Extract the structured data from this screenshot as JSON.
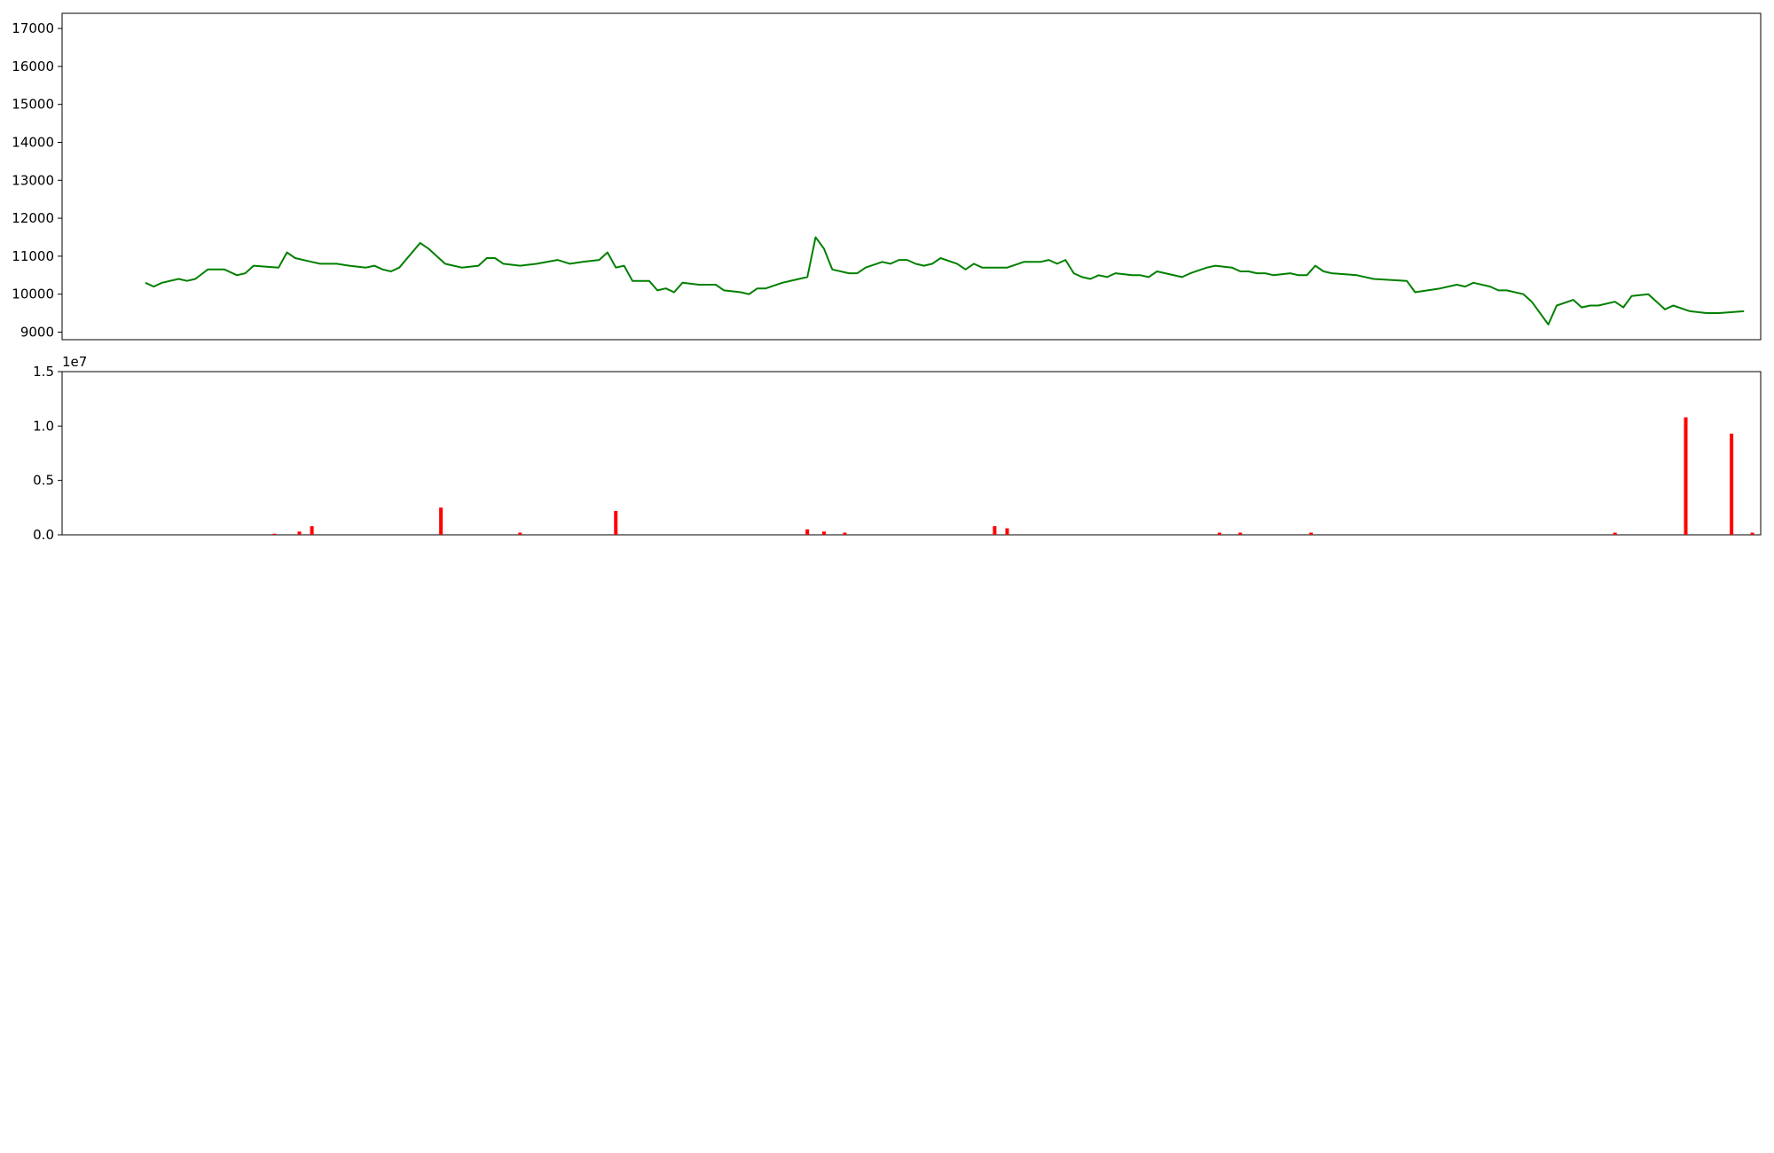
{
  "chart_data": [
    {
      "type": "line",
      "id": "price",
      "color": "#008000",
      "xlim": [
        "2022-12-16",
        "2024-01-28"
      ],
      "ylim": [
        8800,
        17400
      ],
      "yticks": [
        9000,
        10000,
        11000,
        12000,
        13000,
        14000,
        15000,
        16000,
        17000
      ],
      "points": [
        [
          "2023-01-05",
          10300
        ],
        [
          "2023-01-07",
          10200
        ],
        [
          "2023-01-09",
          10300
        ],
        [
          "2023-01-13",
          10400
        ],
        [
          "2023-01-15",
          10350
        ],
        [
          "2023-01-17",
          10400
        ],
        [
          "2023-01-20",
          10650
        ],
        [
          "2023-01-24",
          10650
        ],
        [
          "2023-01-27",
          10500
        ],
        [
          "2023-01-29",
          10550
        ],
        [
          "2023-01-31",
          10750
        ],
        [
          "2023-02-06",
          10700
        ],
        [
          "2023-02-08",
          11100
        ],
        [
          "2023-02-10",
          10950
        ],
        [
          "2023-02-14",
          10850
        ],
        [
          "2023-02-16",
          10800
        ],
        [
          "2023-02-20",
          10800
        ],
        [
          "2023-02-23",
          10750
        ],
        [
          "2023-02-27",
          10700
        ],
        [
          "2023-03-01",
          10750
        ],
        [
          "2023-03-03",
          10650
        ],
        [
          "2023-03-05",
          10600
        ],
        [
          "2023-03-07",
          10700
        ],
        [
          "2023-03-12",
          11350
        ],
        [
          "2023-03-14",
          11200
        ],
        [
          "2023-03-18",
          10800
        ],
        [
          "2023-03-22",
          10700
        ],
        [
          "2023-03-26",
          10750
        ],
        [
          "2023-03-28",
          10950
        ],
        [
          "2023-03-30",
          10950
        ],
        [
          "2023-04-01",
          10800
        ],
        [
          "2023-04-05",
          10750
        ],
        [
          "2023-04-09",
          10800
        ],
        [
          "2023-04-14",
          10900
        ],
        [
          "2023-04-17",
          10800
        ],
        [
          "2023-04-20",
          10850
        ],
        [
          "2023-04-24",
          10900
        ],
        [
          "2023-04-26",
          11100
        ],
        [
          "2023-04-28",
          10700
        ],
        [
          "2023-04-30",
          10750
        ],
        [
          "2023-05-02",
          10350
        ],
        [
          "2023-05-06",
          10350
        ],
        [
          "2023-05-08",
          10100
        ],
        [
          "2023-05-10",
          10150
        ],
        [
          "2023-05-12",
          10050
        ],
        [
          "2023-05-14",
          10300
        ],
        [
          "2023-05-18",
          10250
        ],
        [
          "2023-05-22",
          10250
        ],
        [
          "2023-05-24",
          10100
        ],
        [
          "2023-05-28",
          10050
        ],
        [
          "2023-05-30",
          10000
        ],
        [
          "2023-06-01",
          10150
        ],
        [
          "2023-06-03",
          10150
        ],
        [
          "2023-06-07",
          10300
        ],
        [
          "2023-06-11",
          10400
        ],
        [
          "2023-06-13",
          10450
        ],
        [
          "2023-06-15",
          11500
        ],
        [
          "2023-06-17",
          11200
        ],
        [
          "2023-06-19",
          10650
        ],
        [
          "2023-06-23",
          10550
        ],
        [
          "2023-06-25",
          10550
        ],
        [
          "2023-06-27",
          10700
        ],
        [
          "2023-07-01",
          10850
        ],
        [
          "2023-07-03",
          10800
        ],
        [
          "2023-07-05",
          10900
        ],
        [
          "2023-07-07",
          10900
        ],
        [
          "2023-07-09",
          10800
        ],
        [
          "2023-07-11",
          10750
        ],
        [
          "2023-07-13",
          10800
        ],
        [
          "2023-07-15",
          10950
        ],
        [
          "2023-07-19",
          10800
        ],
        [
          "2023-07-21",
          10650
        ],
        [
          "2023-07-23",
          10800
        ],
        [
          "2023-07-25",
          10700
        ],
        [
          "2023-07-31",
          10700
        ],
        [
          "2023-08-04",
          10850
        ],
        [
          "2023-08-08",
          10850
        ],
        [
          "2023-08-10",
          10900
        ],
        [
          "2023-08-12",
          10800
        ],
        [
          "2023-08-14",
          10900
        ],
        [
          "2023-08-16",
          10550
        ],
        [
          "2023-08-18",
          10450
        ],
        [
          "2023-08-20",
          10400
        ],
        [
          "2023-08-22",
          10500
        ],
        [
          "2023-08-24",
          10450
        ],
        [
          "2023-08-26",
          10550
        ],
        [
          "2023-08-30",
          10500
        ],
        [
          "2023-09-01",
          10500
        ],
        [
          "2023-09-03",
          10450
        ],
        [
          "2023-09-05",
          10600
        ],
        [
          "2023-09-11",
          10450
        ],
        [
          "2023-09-13",
          10550
        ],
        [
          "2023-09-17",
          10700
        ],
        [
          "2023-09-19",
          10750
        ],
        [
          "2023-09-23",
          10700
        ],
        [
          "2023-09-25",
          10600
        ],
        [
          "2023-09-27",
          10600
        ],
        [
          "2023-09-29",
          10550
        ],
        [
          "2023-10-01",
          10550
        ],
        [
          "2023-10-03",
          10500
        ],
        [
          "2023-10-07",
          10550
        ],
        [
          "2023-10-09",
          10500
        ],
        [
          "2023-10-11",
          10500
        ],
        [
          "2023-10-13",
          10750
        ],
        [
          "2023-10-15",
          10600
        ],
        [
          "2023-10-17",
          10550
        ],
        [
          "2023-10-23",
          10500
        ],
        [
          "2023-10-27",
          10400
        ],
        [
          "2023-11-04",
          10350
        ],
        [
          "2023-11-06",
          10050
        ],
        [
          "2023-11-12",
          10150
        ],
        [
          "2023-11-16",
          10250
        ],
        [
          "2023-11-18",
          10200
        ],
        [
          "2023-11-20",
          10300
        ],
        [
          "2023-11-24",
          10200
        ],
        [
          "2023-11-26",
          10100
        ],
        [
          "2023-11-28",
          10100
        ],
        [
          "2023-12-02",
          10000
        ],
        [
          "2023-12-04",
          9800
        ],
        [
          "2023-12-08",
          9200
        ],
        [
          "2023-12-10",
          9700
        ],
        [
          "2023-12-14",
          9850
        ],
        [
          "2023-12-16",
          9650
        ],
        [
          "2023-12-18",
          9700
        ],
        [
          "2023-12-20",
          9700
        ],
        [
          "2023-12-24",
          9800
        ],
        [
          "2023-12-26",
          9650
        ],
        [
          "2023-12-28",
          9950
        ],
        [
          "2024-01-01",
          10000
        ],
        [
          "2024-01-05",
          9600
        ],
        [
          "2024-01-07",
          9700
        ],
        [
          "2024-01-11",
          9550
        ],
        [
          "2024-01-15",
          9500
        ],
        [
          "2024-01-18",
          9500
        ],
        [
          "2024-01-24",
          9550
        ]
      ]
    },
    {
      "type": "bar",
      "id": "volume",
      "offset_label": "1e7",
      "ylim": [
        0,
        1.5
      ],
      "yticks": [
        0.0,
        0.5,
        1.0,
        1.5
      ],
      "ytick_labels": [
        "0.0",
        "0.5",
        "1.0",
        "1.5"
      ],
      "series": [
        {
          "dates": [
            "2023-02-05",
            "2023-02-11",
            "2023-02-14",
            "2023-03-17",
            "2023-04-05",
            "2023-04-28",
            "2023-06-13",
            "2023-06-17",
            "2023-06-22",
            "2023-07-28",
            "2023-07-31",
            "2023-09-20",
            "2023-09-25",
            "2023-10-12",
            "2023-12-24",
            "2024-01-10",
            "2024-01-21",
            "2024-01-26"
          ],
          "values": [
            0.01,
            0.03,
            0.08,
            0.25,
            0.02,
            0.22,
            0.05,
            0.03,
            0.02,
            0.08,
            0.06,
            0.02,
            0.02,
            0.02,
            0.02,
            1.08,
            0.93,
            0.02
          ],
          "color": "#ff0000"
        }
      ]
    }
  ]
}
